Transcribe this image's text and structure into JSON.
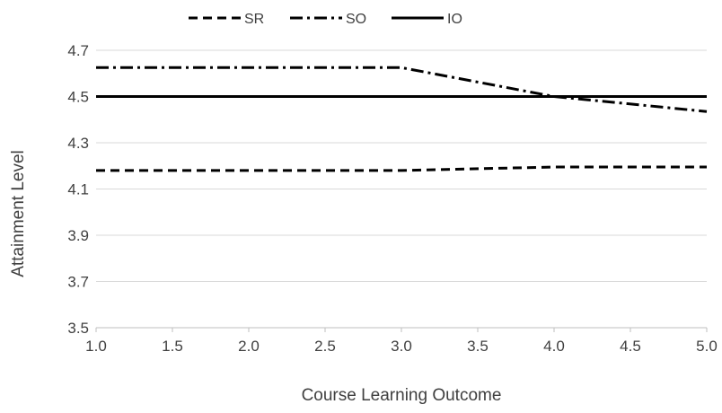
{
  "chart_data": {
    "type": "line",
    "xlabel": "Course Learning Outcome",
    "ylabel": "Attainment Level",
    "xlim": [
      1.0,
      5.0
    ],
    "ylim": [
      3.5,
      4.7
    ],
    "x_ticks": [
      "1.0",
      "1.5",
      "2.0",
      "2.5",
      "3.0",
      "3.5",
      "4.0",
      "4.5",
      "5.0"
    ],
    "y_ticks": [
      "3.5",
      "3.7",
      "3.9",
      "4.1",
      "4.3",
      "4.5",
      "4.7"
    ],
    "grid": "horizontal",
    "legend_position": "top-center",
    "series": [
      {
        "name": "SR",
        "style": "dashed",
        "color": "#000000",
        "x": [
          1,
          2,
          3,
          4,
          5
        ],
        "y": [
          4.18,
          4.18,
          4.18,
          4.195,
          4.195
        ]
      },
      {
        "name": "SO",
        "style": "dash-dot",
        "color": "#000000",
        "x": [
          1,
          2,
          3,
          4,
          5
        ],
        "y": [
          4.625,
          4.625,
          4.625,
          4.5,
          4.435
        ]
      },
      {
        "name": "IO",
        "style": "solid",
        "color": "#000000",
        "x": [
          1,
          2,
          3,
          4,
          5
        ],
        "y": [
          4.5,
          4.5,
          4.5,
          4.5,
          4.5
        ]
      }
    ]
  }
}
